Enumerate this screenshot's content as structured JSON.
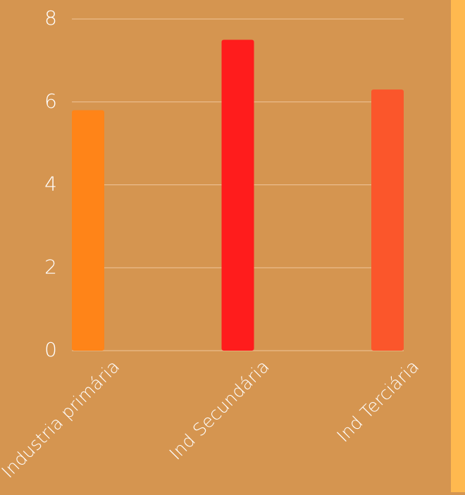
{
  "chart_data": {
    "type": "bar",
    "categories": [
      "Industria primária",
      "Ind Secundária",
      "Ind Terciária"
    ],
    "values": [
      5.8,
      7.5,
      6.3
    ],
    "bar_colors": [
      "#ff8418",
      "#ff1c1c",
      "#fb562b"
    ],
    "ylim": [
      0,
      8
    ],
    "yticks": [
      0,
      2,
      4,
      6,
      8
    ],
    "grid": true,
    "title": "",
    "xlabel": "",
    "ylabel": ""
  },
  "colors": {
    "background": "#d59550",
    "right_strip": "#ffb94f",
    "gridline": "#efc59a",
    "text": "#ffffff"
  }
}
